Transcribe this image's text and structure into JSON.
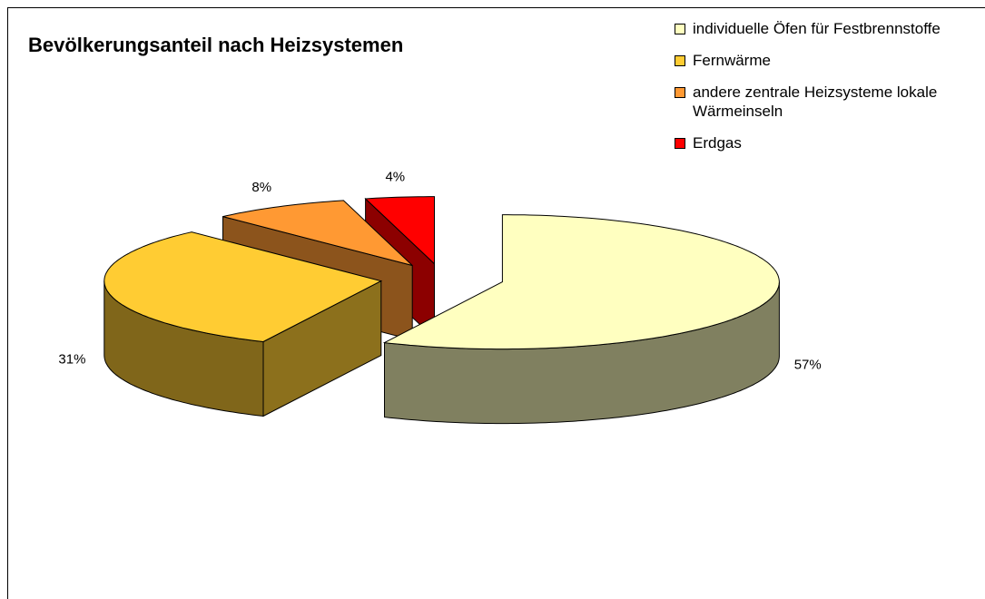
{
  "chart_data": {
    "type": "pie3d",
    "title": "Bevölkerungsanteil nach Heizsystemen",
    "categories": [
      "individuelle Öfen für Festbrennstoffe",
      "Fernwärme",
      "andere zentrale Heizsysteme lokale Wärmeinseln",
      "Erdgas"
    ],
    "values": [
      57,
      31,
      8,
      4
    ],
    "value_labels": [
      "57%",
      "31%",
      "8%",
      "4%"
    ],
    "colors": [
      "#ffffc0",
      "#ffcc33",
      "#ff9933",
      "#ff0000"
    ],
    "legend": "top-right"
  }
}
